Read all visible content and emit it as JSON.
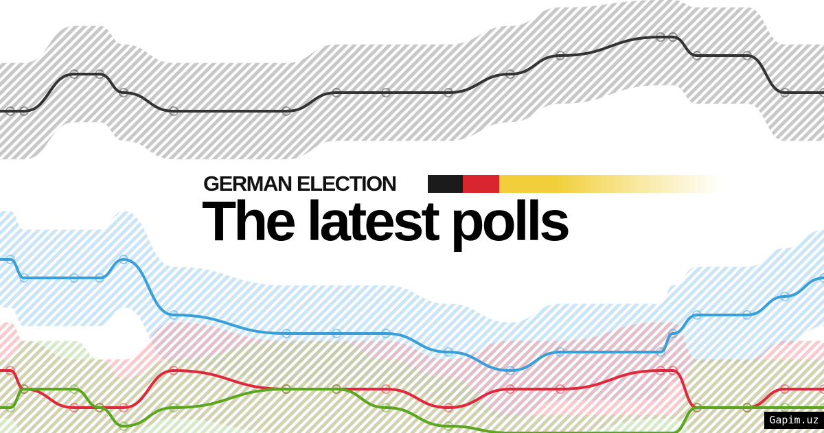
{
  "kicker": "GERMAN ELECTION",
  "title": "The latest polls",
  "flag_colors": [
    "#1b1b1b",
    "#d9252d",
    "#f2cf3a"
  ],
  "watermark": "Gapim.uz",
  "chart_data": {
    "type": "line",
    "title": "",
    "xlabel": "",
    "ylabel": "",
    "grid": false,
    "legend": "none",
    "x": [
      1,
      2,
      3,
      4,
      5,
      6,
      7,
      8,
      9,
      10,
      11,
      12,
      13,
      14,
      15,
      16,
      17,
      18
    ],
    "series": [
      {
        "color": "#333333",
        "band_color": "#9a9a9a",
        "values": [
          30,
          30,
          32,
          32,
          31,
          30,
          30,
          31,
          31,
          31,
          32,
          33,
          34,
          34,
          33,
          33,
          31,
          31
        ]
      },
      {
        "color": "#3a9fd8",
        "band_color": "#9fd0f0",
        "values": [
          22,
          21,
          21,
          21,
          22,
          19,
          18,
          18,
          18,
          17,
          16,
          17,
          17,
          18,
          19,
          19,
          20,
          21
        ]
      },
      {
        "color": "#e0283c",
        "band_color": "#f4a0a8",
        "values": [
          16,
          15,
          14,
          14,
          14,
          16,
          15,
          15,
          15,
          14,
          15,
          15,
          16,
          16,
          14,
          14,
          15,
          15
        ]
      },
      {
        "color": "#5aa61e",
        "band_color": "#b5d89c",
        "values": [
          14,
          15,
          15,
          14,
          13,
          14,
          15,
          15,
          14,
          13,
          11,
          11,
          11,
          11,
          14,
          14,
          14,
          14
        ]
      }
    ]
  }
}
